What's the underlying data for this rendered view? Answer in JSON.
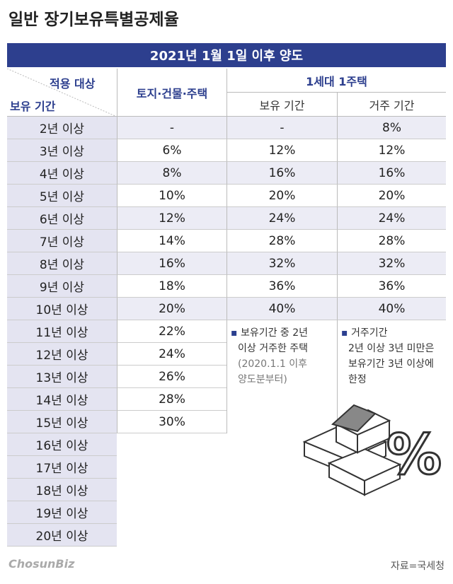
{
  "title": "일반 장기보유특별공제율",
  "table": {
    "banner": "2021년 1월 1일 이후 양도",
    "header": {
      "target": "적용 대상",
      "period": "보유 기간",
      "land": "토지·건물·주택",
      "group": "1세대 1주택",
      "hold": "보유 기간",
      "residence": "거주 기간"
    },
    "rows": [
      [
        "2년 이상",
        "-",
        "-",
        "8%"
      ],
      [
        "3년 이상",
        "6%",
        "12%",
        "12%"
      ],
      [
        "4년 이상",
        "8%",
        "16%",
        "16%"
      ],
      [
        "5년 이상",
        "10%",
        "20%",
        "20%"
      ],
      [
        "6년 이상",
        "12%",
        "24%",
        "24%"
      ],
      [
        "7년 이상",
        "14%",
        "28%",
        "28%"
      ],
      [
        "8년 이상",
        "16%",
        "32%",
        "32%"
      ],
      [
        "9년 이상",
        "18%",
        "36%",
        "36%"
      ],
      [
        "10년 이상",
        "20%",
        "40%",
        "40%"
      ],
      [
        "11년 이상",
        "22%"
      ],
      [
        "12년 이상",
        "24%"
      ],
      [
        "13년 이상",
        "26%"
      ],
      [
        "14년 이상",
        "28%"
      ],
      [
        "15년 이상",
        "30%"
      ],
      [
        "16년 이상"
      ],
      [
        "17년 이상"
      ],
      [
        "18년 이상"
      ],
      [
        "19년 이상"
      ],
      [
        "20년 이상"
      ]
    ]
  },
  "notes": [
    {
      "lines": [
        "보유기간 중 2년",
        "이상 거주한 주택",
        "(2020.1.1 이후",
        "양도분부터)"
      ]
    },
    {
      "lines": [
        "거주기간",
        "2년 이상 3년 미만은",
        "보유기간 3년 이상에",
        "한정"
      ]
    }
  ],
  "icon": "%",
  "logo": "ChosunBiz",
  "source": "자료=국세청"
}
